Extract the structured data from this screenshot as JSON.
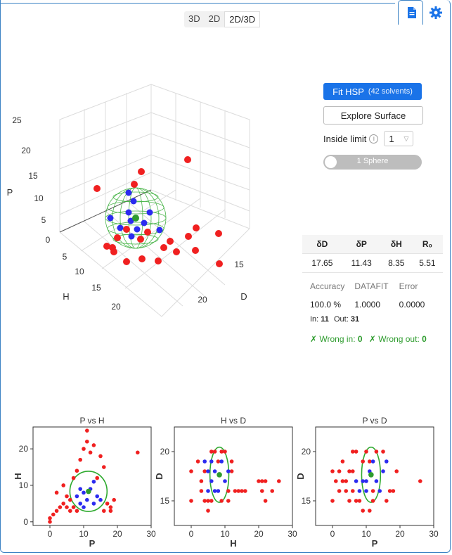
{
  "header": {
    "view_tabs": [
      "3D",
      "2D",
      "2D/3D"
    ],
    "active_tab": "2D/3D",
    "icons": [
      "document-icon",
      "gear-icon"
    ]
  },
  "plot3d": {
    "h_ticks": [
      "0",
      "5",
      "10",
      "15",
      "20",
      "25"
    ],
    "hx_ticks": [
      "5",
      "10",
      "15",
      "20"
    ],
    "d_ticks": [
      "15",
      "20"
    ],
    "h_label": "H",
    "d_label": "D",
    "p_label": "P"
  },
  "controls": {
    "fit_label": "Fit HSP",
    "fit_sub": "(42 solvents)",
    "explore_label": "Explore Surface",
    "inside_limit_label": "Inside limit",
    "inside_limit_value": "1",
    "sphere_toggle_label": "1 Sphere"
  },
  "params": {
    "headers": [
      "δD",
      "δP",
      "δH",
      "R₀"
    ],
    "values": [
      "17.65",
      "11.43",
      "8.35",
      "5.51"
    ]
  },
  "stats": {
    "labels": [
      "Accuracy",
      "DATAFIT",
      "Error"
    ],
    "values": [
      "100.0 %",
      "1.0000",
      "0.0000"
    ],
    "in_label": "In:",
    "in_value": "11",
    "out_label": "Out:",
    "out_value": "31",
    "wrong_in_label": "✗ Wrong in:",
    "wrong_in_value": "0",
    "wrong_out_label": "✗ Wrong out:",
    "wrong_out_value": "0"
  },
  "colors": {
    "inside": "#2b2bf0",
    "outside": "#f02020",
    "center": "#2e9c2e",
    "sphere": "#2eaa2e",
    "accent": "#1a73e8"
  },
  "chart_data": [
    {
      "type": "scatter",
      "title": "P vs H",
      "xlabel": "P",
      "ylabel": "H",
      "xlim": [
        -5,
        30
      ],
      "ylim": [
        -1,
        26
      ],
      "xticks": [
        "0",
        "10",
        "20",
        "30"
      ],
      "yticks": [
        "0",
        "10",
        "20"
      ],
      "circle": {
        "cx": 11.43,
        "cy": 8.35,
        "r": 5.51
      },
      "center": [
        11.43,
        8.35
      ],
      "inside": [
        [
          8,
          7
        ],
        [
          9,
          5
        ],
        [
          10,
          8
        ],
        [
          11,
          6
        ],
        [
          12,
          9
        ],
        [
          13,
          11
        ],
        [
          13,
          5
        ],
        [
          14,
          7
        ],
        [
          9,
          9
        ],
        [
          10,
          4
        ],
        [
          15,
          6
        ]
      ],
      "outside": [
        [
          0,
          0
        ],
        [
          0,
          1
        ],
        [
          1,
          2
        ],
        [
          2,
          3
        ],
        [
          3,
          4
        ],
        [
          4,
          5
        ],
        [
          5,
          4
        ],
        [
          6,
          3
        ],
        [
          7,
          4
        ],
        [
          8,
          3
        ],
        [
          2,
          8
        ],
        [
          4,
          10
        ],
        [
          5,
          7
        ],
        [
          6,
          6
        ],
        [
          7,
          12
        ],
        [
          8,
          14
        ],
        [
          9,
          17
        ],
        [
          10,
          20
        ],
        [
          11,
          22
        ],
        [
          11,
          25
        ],
        [
          12,
          19
        ],
        [
          13,
          21
        ],
        [
          14,
          12
        ],
        [
          15,
          18
        ],
        [
          16,
          15
        ],
        [
          17,
          5
        ],
        [
          18,
          3
        ],
        [
          18,
          4
        ],
        [
          19,
          6
        ],
        [
          26,
          19
        ],
        [
          16,
          3
        ]
      ]
    },
    {
      "type": "scatter",
      "title": "H vs D",
      "xlabel": "H",
      "ylabel": "D",
      "xlim": [
        -5,
        30
      ],
      "ylim": [
        12.5,
        22.5
      ],
      "xticks": [
        "0",
        "10",
        "20",
        "30"
      ],
      "yticks": [
        "15",
        "20"
      ],
      "circle": {
        "cx": 8.35,
        "cy": 17.65,
        "r": 2.8
      },
      "center": [
        8.35,
        17.65
      ],
      "inside": [
        [
          4,
          19
        ],
        [
          5,
          18
        ],
        [
          6,
          17
        ],
        [
          7,
          18
        ],
        [
          8,
          16
        ],
        [
          9,
          19
        ],
        [
          10,
          17
        ],
        [
          5,
          16
        ],
        [
          7,
          16
        ],
        [
          11,
          18
        ],
        [
          6,
          19
        ]
      ],
      "outside": [
        [
          0,
          18
        ],
        [
          0,
          15
        ],
        [
          3,
          17
        ],
        [
          3,
          16
        ],
        [
          4,
          18
        ],
        [
          5,
          15
        ],
        [
          6,
          20
        ],
        [
          7,
          20
        ],
        [
          9,
          20
        ],
        [
          10,
          20
        ],
        [
          11,
          16
        ],
        [
          12,
          19
        ],
        [
          13,
          16
        ],
        [
          14,
          16
        ],
        [
          15,
          16
        ],
        [
          16,
          16
        ],
        [
          20,
          17
        ],
        [
          21,
          17
        ],
        [
          21,
          16
        ],
        [
          22,
          15
        ],
        [
          22,
          17
        ],
        [
          24,
          16
        ],
        [
          26,
          17
        ],
        [
          8,
          19
        ],
        [
          9,
          15
        ],
        [
          12,
          18
        ],
        [
          5,
          14
        ],
        [
          2,
          19
        ],
        [
          11,
          15
        ],
        [
          6,
          15
        ],
        [
          4,
          15
        ]
      ]
    },
    {
      "type": "scatter",
      "title": "P vs D",
      "xlabel": "P",
      "ylabel": "D",
      "xlim": [
        -5,
        30
      ],
      "ylim": [
        12.5,
        22.5
      ],
      "xticks": [
        "0",
        "10",
        "20",
        "30"
      ],
      "yticks": [
        "15",
        "20"
      ],
      "circle": {
        "cx": 11.43,
        "cy": 17.65,
        "r": 2.8
      },
      "center": [
        11.43,
        17.65
      ],
      "inside": [
        [
          7,
          17
        ],
        [
          8,
          16
        ],
        [
          9,
          17
        ],
        [
          10,
          16
        ],
        [
          11,
          18
        ],
        [
          12,
          19
        ],
        [
          13,
          17
        ],
        [
          14,
          16
        ],
        [
          15,
          18
        ],
        [
          16,
          19
        ],
        [
          10,
          17
        ]
      ],
      "outside": [
        [
          0,
          18
        ],
        [
          0,
          15
        ],
        [
          2,
          18
        ],
        [
          2,
          16
        ],
        [
          3,
          17
        ],
        [
          4,
          17
        ],
        [
          5,
          18
        ],
        [
          5,
          15
        ],
        [
          6,
          16
        ],
        [
          6,
          20
        ],
        [
          7,
          20
        ],
        [
          8,
          15
        ],
        [
          9,
          19
        ],
        [
          10,
          20
        ],
        [
          11,
          19
        ],
        [
          12,
          16
        ],
        [
          13,
          20
        ],
        [
          16,
          15
        ],
        [
          17,
          16
        ],
        [
          18,
          16
        ],
        [
          19,
          18
        ],
        [
          26,
          17
        ],
        [
          4,
          16
        ],
        [
          3,
          19
        ],
        [
          11,
          14
        ],
        [
          7,
          15
        ],
        [
          15,
          20
        ],
        [
          12,
          15
        ],
        [
          6,
          18
        ],
        [
          1,
          17
        ],
        [
          9,
          14
        ]
      ]
    }
  ]
}
